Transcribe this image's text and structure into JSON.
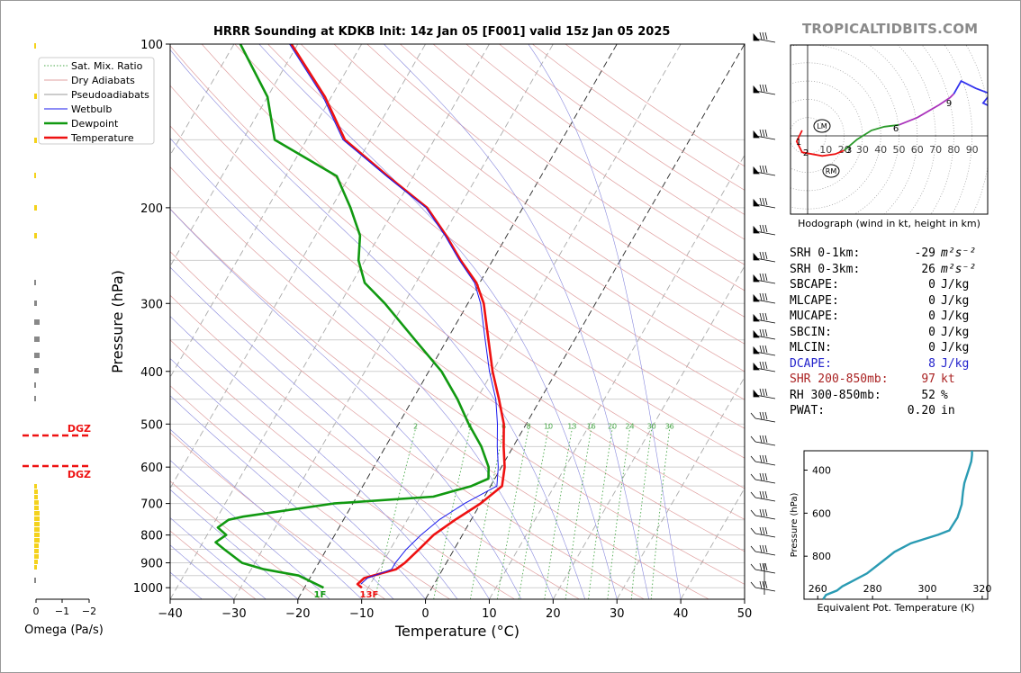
{
  "header": {
    "title": "HRRR Sounding at KDKB Init: 14z Jan 05 [F001] valid 15z Jan 05 2025",
    "brand": "TROPICALTIDBITS.COM"
  },
  "chart_data": [
    {
      "type": "line",
      "name": "skew-t",
      "xlabel": "Temperature (°C)",
      "ylabel": "Pressure (hPa)",
      "xlim": [
        -40,
        50
      ],
      "ylim": [
        1050,
        100
      ],
      "x_ticks": [
        "−40",
        "−30",
        "−20",
        "−10",
        "0",
        "10",
        "20",
        "30",
        "40",
        "50"
      ],
      "y_ticks": [
        100,
        200,
        300,
        400,
        500,
        600,
        700,
        800,
        900,
        1000
      ],
      "legend": [
        "Sat. Mix. Ratio",
        "Dry Adiabats",
        "Pseudoadiabats",
        "Wetbulb",
        "Dewpoint",
        "Temperature"
      ],
      "legend_position": "top-left",
      "mixing_ratio_labels": [
        "2",
        "4",
        "6",
        "8",
        "10",
        "13",
        "16",
        "20",
        "24",
        "30",
        "36"
      ],
      "surface_labels": {
        "dewpoint": "1F",
        "temperature": "13F"
      },
      "series": [
        {
          "name": "Temperature",
          "color": "#ee1111",
          "points": [
            [
              1000,
              -11
            ],
            [
              985,
              -12
            ],
            [
              960,
              -11.5
            ],
            [
              925,
              -7.3
            ],
            [
              900,
              -6.5
            ],
            [
              850,
              -5.5
            ],
            [
              800,
              -4.5
            ],
            [
              750,
              -2.5
            ],
            [
              700,
              0
            ],
            [
              650,
              1.8
            ],
            [
              600,
              0.5
            ],
            [
              550,
              -1.5
            ],
            [
              500,
              -3.5
            ],
            [
              450,
              -6.5
            ],
            [
              400,
              -10
            ],
            [
              350,
              -13.5
            ],
            [
              300,
              -17.5
            ],
            [
              275,
              -20.5
            ],
            [
              250,
              -25
            ],
            [
              225,
              -29.5
            ],
            [
              200,
              -35
            ],
            [
              175,
              -44
            ],
            [
              150,
              -54
            ],
            [
              125,
              -61
            ],
            [
              100,
              -71
            ]
          ]
        },
        {
          "name": "Wetbulb",
          "color": "#1a1aee",
          "points": [
            [
              985,
              -11.5
            ],
            [
              960,
              -11
            ],
            [
              925,
              -8
            ],
            [
              900,
              -8
            ],
            [
              850,
              -7.5
            ],
            [
              800,
              -6.5
            ],
            [
              750,
              -5
            ],
            [
              700,
              -2.5
            ],
            [
              650,
              1
            ],
            [
              600,
              -0.5
            ],
            [
              550,
              -2.5
            ],
            [
              500,
              -4.5
            ],
            [
              450,
              -7
            ],
            [
              400,
              -10.5
            ],
            [
              350,
              -14
            ],
            [
              300,
              -18
            ],
            [
              275,
              -20.8
            ],
            [
              250,
              -25.2
            ],
            [
              225,
              -29.7
            ],
            [
              200,
              -35.2
            ],
            [
              175,
              -44.2
            ],
            [
              150,
              -54.3
            ],
            [
              125,
              -61.3
            ],
            [
              100,
              -71.3
            ]
          ]
        },
        {
          "name": "Dewpoint",
          "color": "#119911",
          "points": [
            [
              1000,
              -17
            ],
            [
              950,
              -22
            ],
            [
              925,
              -28
            ],
            [
              900,
              -32
            ],
            [
              850,
              -36
            ],
            [
              825,
              -38
            ],
            [
              800,
              -37
            ],
            [
              775,
              -39
            ],
            [
              750,
              -38
            ],
            [
              740,
              -36
            ],
            [
              700,
              -23
            ],
            [
              680,
              -8
            ],
            [
              650,
              -3
            ],
            [
              630,
              -1
            ],
            [
              600,
              -2
            ],
            [
              550,
              -5
            ],
            [
              500,
              -9
            ],
            [
              450,
              -13
            ],
            [
              400,
              -18
            ],
            [
              350,
              -25
            ],
            [
              300,
              -33
            ],
            [
              275,
              -38
            ],
            [
              250,
              -41
            ],
            [
              225,
              -43
            ],
            [
              200,
              -47
            ],
            [
              175,
              -52
            ],
            [
              150,
              -65
            ],
            [
              125,
              -70
            ],
            [
              100,
              -79
            ]
          ]
        }
      ]
    },
    {
      "type": "line",
      "name": "hodograph",
      "xlabel": "Hodograph (wind in kt, height in km)",
      "ring_labels": [
        "10",
        "20",
        "30",
        "40",
        "50",
        "60",
        "70",
        "80",
        "90"
      ],
      "markers": [
        "LM",
        "RM"
      ],
      "height_labels": [
        "1",
        "2",
        "3",
        "6",
        "9"
      ],
      "series": [
        {
          "name": "0-3 km",
          "color": "#ee1111",
          "points": [
            [
              -3,
              3
            ],
            [
              -6,
              -3
            ],
            [
              -3,
              -9
            ],
            [
              8,
              -11
            ],
            [
              15,
              -10
            ],
            [
              20,
              -8
            ]
          ]
        },
        {
          "name": "3-6 km",
          "color": "#2a9a2a",
          "points": [
            [
              20,
              -8
            ],
            [
              27,
              -2
            ],
            [
              35,
              3
            ],
            [
              42,
              5
            ],
            [
              50,
              6
            ]
          ]
        },
        {
          "name": "6-9 km",
          "color": "#aa33bb",
          "points": [
            [
              50,
              6
            ],
            [
              60,
              10
            ],
            [
              72,
              17
            ],
            [
              78,
              21
            ],
            [
              80,
              23
            ]
          ]
        },
        {
          "name": "9+ km",
          "color": "#3333ee",
          "points": [
            [
              80,
              23
            ],
            [
              84,
              30
            ],
            [
              92,
              26
            ],
            [
              100,
              23
            ],
            [
              96,
              18
            ],
            [
              100,
              16
            ],
            [
              104,
              18
            ]
          ]
        }
      ]
    },
    {
      "type": "line",
      "name": "theta-e",
      "xlabel": "Equivalent Pot. Temperature (K)",
      "ylabel": "Pressure (hPa)",
      "xlim": [
        255,
        322
      ],
      "ylim": [
        1000,
        310
      ],
      "x_ticks": [
        "260",
        "280",
        "300",
        "320"
      ],
      "y_ticks": [
        "400",
        "600",
        "800"
      ],
      "series": [
        {
          "name": "theta-e",
          "color": "#2a9bb3",
          "points": [
            [
              1000,
              262
            ],
            [
              980,
              263
            ],
            [
              960,
              267
            ],
            [
              940,
              269
            ],
            [
              920,
              272
            ],
            [
              880,
              278
            ],
            [
              820,
              284
            ],
            [
              780,
              288
            ],
            [
              740,
              294
            ],
            [
              720,
              299
            ],
            [
              700,
              304
            ],
            [
              680,
              308
            ],
            [
              660,
              309
            ],
            [
              620,
              311
            ],
            [
              560,
              312.5
            ],
            [
              500,
              313
            ],
            [
              460,
              313.5
            ],
            [
              400,
              315
            ],
            [
              360,
              316
            ],
            [
              330,
              316.3
            ],
            [
              310,
              316.3
            ]
          ]
        }
      ]
    },
    {
      "type": "bar",
      "name": "omega",
      "xlabel": "Omega (Pa/s)",
      "x_ticks": [
        "0",
        "−1",
        "−2"
      ],
      "labels": [
        "DGZ",
        "DGZ"
      ]
    }
  ],
  "stats": [
    {
      "label": "SRH 0-1km:",
      "value": "-29",
      "unit": "m²s⁻²",
      "color": "#000000"
    },
    {
      "label": "SRH 0-3km:",
      "value": "26",
      "unit": "m²s⁻²",
      "color": "#000000"
    },
    {
      "label": "SBCAPE:",
      "value": "0",
      "unit": "J/kg",
      "color": "#000000"
    },
    {
      "label": "MLCAPE:",
      "value": "0",
      "unit": "J/kg",
      "color": "#000000"
    },
    {
      "label": "MUCAPE:",
      "value": "0",
      "unit": "J/kg",
      "color": "#000000"
    },
    {
      "label": "SBCIN:",
      "value": "0",
      "unit": "J/kg",
      "color": "#000000"
    },
    {
      "label": "MLCIN:",
      "value": "0",
      "unit": "J/kg",
      "color": "#000000"
    },
    {
      "label": "DCAPE:",
      "value": "8",
      "unit": "J/kg",
      "color": "#2222cc"
    },
    {
      "label": "SHR 200-850mb:",
      "value": "97",
      "unit": "kt",
      "color": "#aa2222"
    },
    {
      "label": "RH 300-850mb:",
      "value": "52",
      "unit": "%",
      "color": "#000000"
    },
    {
      "label": "PWAT:",
      "value": "0.20",
      "unit": "in",
      "color": "#000000"
    }
  ]
}
